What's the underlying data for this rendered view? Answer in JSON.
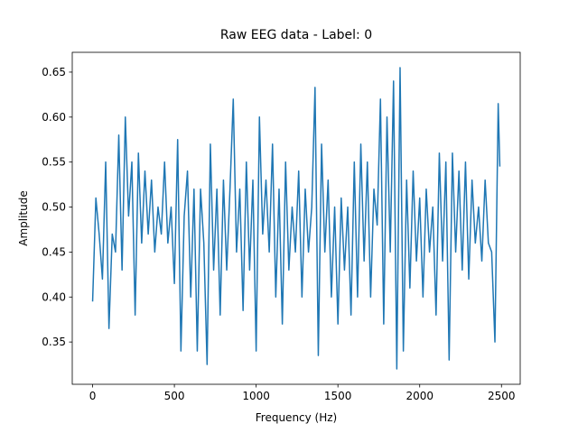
{
  "chart_data": {
    "type": "line",
    "title": "Raw EEG data - Label: 0",
    "xlabel": "Frequency (Hz)",
    "ylabel": "Amplitude",
    "x": [
      0,
      20,
      40,
      60,
      80,
      100,
      120,
      140,
      160,
      180,
      200,
      220,
      240,
      260,
      280,
      300,
      320,
      340,
      360,
      380,
      400,
      420,
      440,
      460,
      480,
      500,
      520,
      540,
      560,
      580,
      600,
      620,
      640,
      660,
      680,
      700,
      720,
      740,
      760,
      780,
      800,
      820,
      840,
      860,
      880,
      900,
      920,
      940,
      960,
      980,
      1000,
      1020,
      1040,
      1060,
      1080,
      1100,
      1120,
      1140,
      1160,
      1180,
      1200,
      1220,
      1240,
      1260,
      1280,
      1300,
      1320,
      1340,
      1360,
      1380,
      1400,
      1420,
      1440,
      1460,
      1480,
      1500,
      1520,
      1540,
      1560,
      1580,
      1600,
      1620,
      1640,
      1660,
      1680,
      1700,
      1720,
      1740,
      1760,
      1780,
      1800,
      1820,
      1840,
      1860,
      1880,
      1900,
      1920,
      1940,
      1960,
      1980,
      2000,
      2020,
      2040,
      2060,
      2080,
      2100,
      2120,
      2140,
      2160,
      2180,
      2200,
      2220,
      2240,
      2260,
      2280,
      2300,
      2320,
      2340,
      2360,
      2380,
      2400,
      2420,
      2440,
      2460,
      2480,
      2490
    ],
    "series": [
      {
        "color": "#1f77b4",
        "values": [
          0.395,
          0.51,
          0.47,
          0.42,
          0.55,
          0.365,
          0.47,
          0.45,
          0.58,
          0.43,
          0.6,
          0.49,
          0.55,
          0.38,
          0.56,
          0.46,
          0.54,
          0.47,
          0.53,
          0.45,
          0.5,
          0.47,
          0.55,
          0.46,
          0.5,
          0.415,
          0.575,
          0.34,
          0.49,
          0.54,
          0.4,
          0.52,
          0.34,
          0.52,
          0.46,
          0.325,
          0.57,
          0.43,
          0.52,
          0.38,
          0.53,
          0.43,
          0.52,
          0.62,
          0.45,
          0.52,
          0.385,
          0.55,
          0.43,
          0.53,
          0.34,
          0.6,
          0.47,
          0.53,
          0.45,
          0.57,
          0.4,
          0.52,
          0.37,
          0.55,
          0.43,
          0.5,
          0.45,
          0.54,
          0.4,
          0.52,
          0.45,
          0.5,
          0.633,
          0.335,
          0.57,
          0.45,
          0.53,
          0.4,
          0.5,
          0.37,
          0.51,
          0.43,
          0.5,
          0.38,
          0.55,
          0.4,
          0.57,
          0.44,
          0.55,
          0.4,
          0.52,
          0.48,
          0.62,
          0.37,
          0.6,
          0.45,
          0.64,
          0.32,
          0.655,
          0.34,
          0.53,
          0.41,
          0.54,
          0.44,
          0.51,
          0.4,
          0.52,
          0.45,
          0.5,
          0.38,
          0.56,
          0.44,
          0.55,
          0.33,
          0.56,
          0.45,
          0.54,
          0.43,
          0.55,
          0.42,
          0.53,
          0.46,
          0.5,
          0.44,
          0.53,
          0.46,
          0.45,
          0.35,
          0.615,
          0.545
        ]
      }
    ],
    "xlim": [
      -124.5,
      2614.5
    ],
    "ylim": [
      0.303,
      0.672
    ],
    "xticks": [
      0,
      500,
      1000,
      1500,
      2000,
      2500
    ],
    "yticks": [
      0.35,
      {
        "value": 0.4,
        "label": "0.40"
      },
      0.45,
      {
        "value": 0.5,
        "label": "0.50"
      },
      0.55,
      {
        "value": 0.6,
        "label": "0.60"
      },
      0.65
    ]
  }
}
